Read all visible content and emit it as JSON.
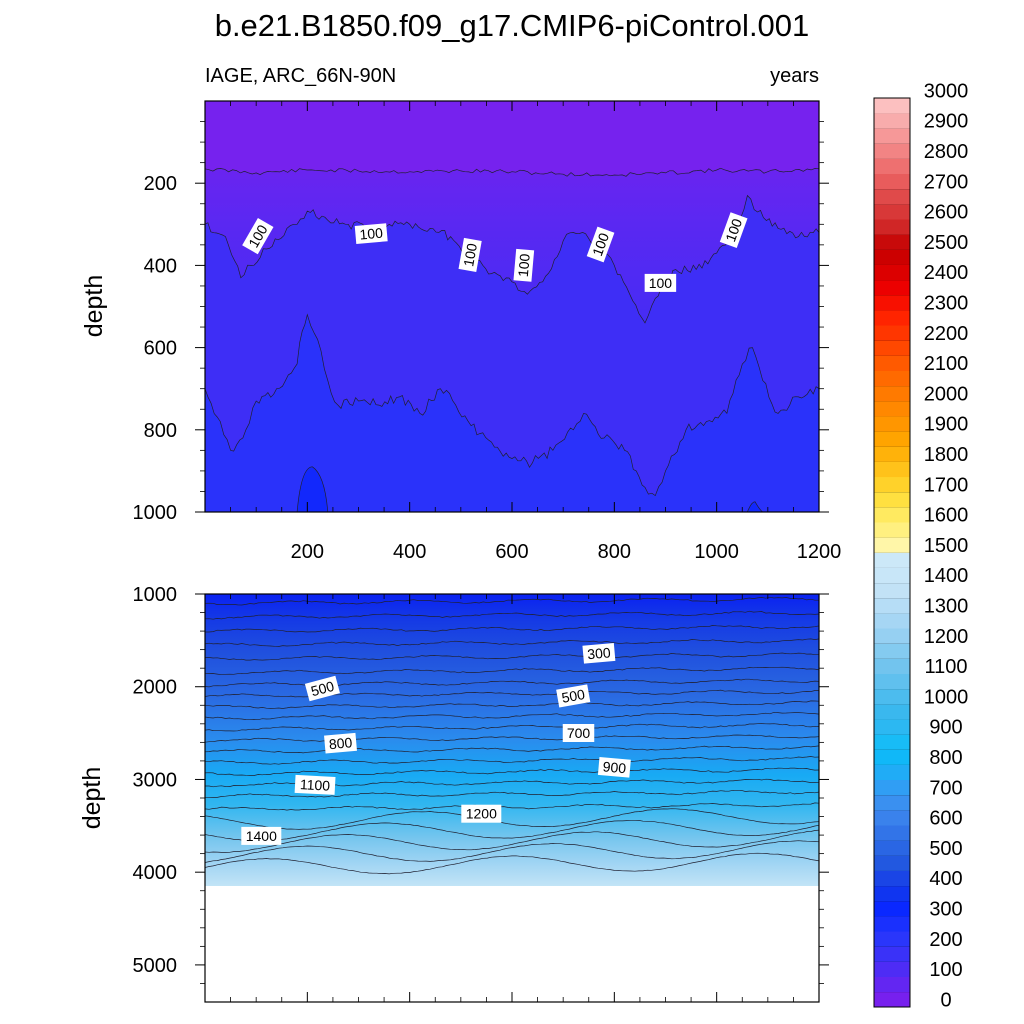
{
  "figure": {
    "title": "b.e21.B1850.f09_g17.CMIP6-piControl.001",
    "variable_label": "IAGE, ARC_66N-90N",
    "units_label": "years"
  },
  "chart_data": [
    {
      "type": "heatmap",
      "name": "upper panel",
      "xlabel": "",
      "ylabel": "depth",
      "xlim": [
        0,
        1200
      ],
      "ylim": [
        1000,
        0
      ],
      "xticks": [
        200,
        400,
        600,
        800,
        1000,
        1200
      ],
      "yticks": [
        200,
        400,
        600,
        800,
        1000
      ],
      "grid": false,
      "contour_levels": [
        0,
        100,
        200
      ],
      "contour_labels": [
        {
          "text": "100",
          "x": 105,
          "y": 330,
          "rotate": -60
        },
        {
          "text": "100",
          "x": 325,
          "y": 325,
          "rotate": -5
        },
        {
          "text": "100",
          "x": 520,
          "y": 375,
          "rotate": -80
        },
        {
          "text": "100",
          "x": 625,
          "y": 400,
          "rotate": -85
        },
        {
          "text": "100",
          "x": 775,
          "y": 350,
          "rotate": -70
        },
        {
          "text": "100",
          "x": 890,
          "y": 445,
          "rotate": 0
        },
        {
          "text": "100",
          "x": 1035,
          "y": 315,
          "rotate": -70
        }
      ],
      "isoline_100_depth": [
        [
          0,
          165
        ],
        [
          100,
          175
        ],
        [
          200,
          168
        ],
        [
          300,
          170
        ],
        [
          400,
          172
        ],
        [
          500,
          170
        ],
        [
          600,
          172
        ],
        [
          700,
          178
        ],
        [
          800,
          180
        ],
        [
          900,
          175
        ],
        [
          1000,
          168
        ],
        [
          1100,
          172
        ],
        [
          1200,
          165
        ]
      ],
      "isoline_upper_depth": [
        [
          0,
          300
        ],
        [
          40,
          330
        ],
        [
          70,
          430
        ],
        [
          90,
          400
        ],
        [
          120,
          360
        ],
        [
          160,
          310
        ],
        [
          180,
          300
        ],
        [
          200,
          268
        ],
        [
          240,
          290
        ],
        [
          280,
          300
        ],
        [
          320,
          310
        ],
        [
          360,
          300
        ],
        [
          400,
          300
        ],
        [
          440,
          310
        ],
        [
          480,
          330
        ],
        [
          520,
          380
        ],
        [
          560,
          420
        ],
        [
          600,
          440
        ],
        [
          630,
          470
        ],
        [
          660,
          440
        ],
        [
          700,
          340
        ],
        [
          720,
          320
        ],
        [
          750,
          335
        ],
        [
          780,
          370
        ],
        [
          800,
          400
        ],
        [
          830,
          470
        ],
        [
          860,
          540
        ],
        [
          880,
          480
        ],
        [
          920,
          410
        ],
        [
          960,
          410
        ],
        [
          1000,
          370
        ],
        [
          1040,
          320
        ],
        [
          1060,
          230
        ],
        [
          1080,
          270
        ],
        [
          1120,
          310
        ],
        [
          1160,
          330
        ],
        [
          1200,
          320
        ]
      ],
      "isoline_lower_depth": [
        [
          0,
          700
        ],
        [
          30,
          780
        ],
        [
          50,
          850
        ],
        [
          80,
          800
        ],
        [
          100,
          730
        ],
        [
          140,
          700
        ],
        [
          180,
          640
        ],
        [
          190,
          560
        ],
        [
          200,
          520
        ],
        [
          220,
          580
        ],
        [
          240,
          680
        ],
        [
          260,
          740
        ],
        [
          300,
          730
        ],
        [
          340,
          740
        ],
        [
          380,
          720
        ],
        [
          420,
          760
        ],
        [
          460,
          700
        ],
        [
          490,
          740
        ],
        [
          520,
          790
        ],
        [
          560,
          830
        ],
        [
          600,
          870
        ],
        [
          640,
          880
        ],
        [
          680,
          850
        ],
        [
          720,
          800
        ],
        [
          740,
          760
        ],
        [
          780,
          820
        ],
        [
          820,
          850
        ],
        [
          860,
          940
        ],
        [
          880,
          960
        ],
        [
          900,
          900
        ],
        [
          940,
          800
        ],
        [
          980,
          780
        ],
        [
          1020,
          760
        ],
        [
          1050,
          640
        ],
        [
          1070,
          600
        ],
        [
          1090,
          680
        ],
        [
          1120,
          760
        ],
        [
          1160,
          720
        ],
        [
          1200,
          700
        ]
      ],
      "isoline_deep_patches": [
        {
          "x_from": 180,
          "x_to": 240,
          "min_depth": 890
        },
        {
          "x_from": 1060,
          "x_to": 1090,
          "min_depth": 975
        }
      ]
    },
    {
      "type": "heatmap",
      "name": "lower panel",
      "xlabel": "",
      "ylabel": "depth",
      "xlim": [
        0,
        1200
      ],
      "ylim": [
        5400,
        1000
      ],
      "yticks": [
        1000,
        2000,
        3000,
        4000,
        5000
      ],
      "grid": false,
      "missing_below_depth": 4120,
      "isoline_levels_at_x0": [
        {
          "level": 300,
          "depth": 1100
        },
        {
          "level": 350,
          "depth": 1250
        },
        {
          "level": 400,
          "depth": 1400
        },
        {
          "level": 450,
          "depth": 1550
        },
        {
          "level": 500,
          "depth": 1700
        },
        {
          "level": 550,
          "depth": 1850
        },
        {
          "level": 600,
          "depth": 1980
        },
        {
          "level": 650,
          "depth": 2100
        },
        {
          "level": 700,
          "depth": 2220
        },
        {
          "level": 750,
          "depth": 2340
        },
        {
          "level": 800,
          "depth": 2460
        },
        {
          "level": 850,
          "depth": 2580
        },
        {
          "level": 900,
          "depth": 2700
        },
        {
          "level": 950,
          "depth": 2820
        },
        {
          "level": 1000,
          "depth": 2940
        },
        {
          "level": 1050,
          "depth": 3060
        },
        {
          "level": 1100,
          "depth": 3180
        },
        {
          "level": 1150,
          "depth": 3320
        },
        {
          "level": 1200,
          "depth": 3460
        },
        {
          "level": 1250,
          "depth": 3580
        },
        {
          "level": 1300,
          "depth": 3700
        },
        {
          "level": 1350,
          "depth": 3820
        },
        {
          "level": 1400,
          "depth": 3950
        }
      ],
      "contour_labels": [
        {
          "text": "300",
          "x": 770,
          "y": 1650,
          "rotate": -5
        },
        {
          "text": "500",
          "x": 230,
          "y": 2030,
          "rotate": -15
        },
        {
          "text": "500",
          "x": 720,
          "y": 2110,
          "rotate": -10
        },
        {
          "text": "700",
          "x": 730,
          "y": 2510,
          "rotate": 0
        },
        {
          "text": "800",
          "x": 265,
          "y": 2620,
          "rotate": -5
        },
        {
          "text": "900",
          "x": 800,
          "y": 2880,
          "rotate": 5
        },
        {
          "text": "1100",
          "x": 215,
          "y": 3070,
          "rotate": 3
        },
        {
          "text": "1200",
          "x": 540,
          "y": 3380,
          "rotate": 0
        },
        {
          "text": "1400",
          "x": 110,
          "y": 3620,
          "rotate": 0
        }
      ]
    }
  ],
  "colorbar": {
    "tick_labels": [
      "0",
      "100",
      "200",
      "300",
      "400",
      "500",
      "600",
      "700",
      "800",
      "900",
      "1000",
      "1100",
      "1200",
      "1300",
      "1400",
      "1500",
      "1600",
      "1700",
      "1800",
      "1900",
      "2000",
      "2100",
      "2200",
      "2300",
      "2400",
      "2500",
      "2600",
      "2700",
      "2800",
      "2900",
      "3000"
    ],
    "colors": [
      "#7720ee",
      "#6326f2",
      "#4e2cf5",
      "#3a32f8",
      "#2a36fb",
      "#1a30fd",
      "#0a28ff",
      "#1035f0",
      "#1a45e6",
      "#2258e0",
      "#2a66e4",
      "#3274e8",
      "#3a82ec",
      "#3a90f0",
      "#309ef4",
      "#20acf6",
      "#10b8f8",
      "#18bcf6",
      "#2cb8f2",
      "#3ab8ee",
      "#4cbcee",
      "#60c0ee",
      "#72c4ee",
      "#84cbf0",
      "#96d0f2",
      "#a6d6f4",
      "#b6ddf6",
      "#c2e2f6",
      "#c8e6f8",
      "#cce8f8",
      "#fff6a8",
      "#fff080",
      "#ffea60",
      "#ffe040",
      "#ffd22a",
      "#ffc21a",
      "#ffb20a",
      "#ffa400",
      "#ff9600",
      "#ff8800",
      "#ff7a00",
      "#ff6a00",
      "#ff5a00",
      "#ff4800",
      "#ff3600",
      "#ff2400",
      "#f81000",
      "#ec0000",
      "#dc0000",
      "#cc0000",
      "#c80a0a",
      "#d02626",
      "#d83838",
      "#e04a4a",
      "#e85c5c",
      "#ee7070",
      "#f28484",
      "#f69898",
      "#f8acac",
      "#fcc0c0"
    ]
  }
}
